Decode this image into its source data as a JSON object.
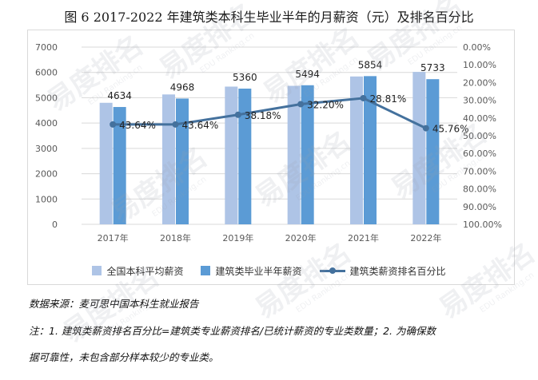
{
  "figure": {
    "title": "图 6 2017-2022 年建筑类本科生毕业半年的月薪资（元）及排名百分比"
  },
  "watermark": {
    "main": "易度排名",
    "sub": "EDU Ranking.cn"
  },
  "colors": {
    "series_bar_1": "#aec4e6",
    "series_bar_2": "#5b9bd5",
    "series_line": "#44719d",
    "grid": "#d9d9d9",
    "axis_text": "#595959"
  },
  "chart_data": {
    "type": "bar",
    "categories": [
      "2017年",
      "2018年",
      "2019年",
      "2020年",
      "2021年",
      "2022年"
    ],
    "y_left": {
      "min": 0,
      "max": 7000,
      "ticks": [
        0,
        1000,
        2000,
        3000,
        4000,
        5000,
        6000,
        7000
      ]
    },
    "y_right": {
      "min": 0,
      "max": 100,
      "reversed": true,
      "ticks": [
        "0.00%",
        "10.00%",
        "20.00%",
        "30.00%",
        "40.00%",
        "50.00%",
        "60.00%",
        "70.00%",
        "80.00%",
        "90.00%",
        "100.00%"
      ]
    },
    "grid": "horizontal",
    "legend_position": "bottom",
    "series": [
      {
        "name": "全国本科平均薪资",
        "type": "bar",
        "axis": "left",
        "values": [
          4800,
          5130,
          5440,
          5470,
          5840,
          6020
        ],
        "labels": [
          "",
          "",
          "",
          "",
          "",
          ""
        ]
      },
      {
        "name": "建筑类毕业半年薪资",
        "type": "bar",
        "axis": "left",
        "values": [
          4634,
          4968,
          5360,
          5494,
          5854,
          5733
        ],
        "labels": [
          "4634",
          "4968",
          "5360",
          "5494",
          "5854",
          "5733"
        ]
      },
      {
        "name": "建筑类薪资排名百分比",
        "type": "line",
        "axis": "right",
        "values": [
          43.64,
          43.64,
          38.18,
          32.2,
          28.81,
          45.76
        ],
        "labels": [
          "43.64%",
          "43.64%",
          "38.18%",
          "32.20%",
          "28.81%",
          "45.76%"
        ]
      }
    ]
  },
  "notes": {
    "source": "数据来源：麦可思中国本科生就业报告",
    "note_line1": "注：1. 建筑类薪资排名百分比=建筑类专业薪资排名/已统计薪资的专业类数量；2. 为确保数",
    "note_line2": "据可靠性，未包含部分样本较少的专业类。"
  }
}
